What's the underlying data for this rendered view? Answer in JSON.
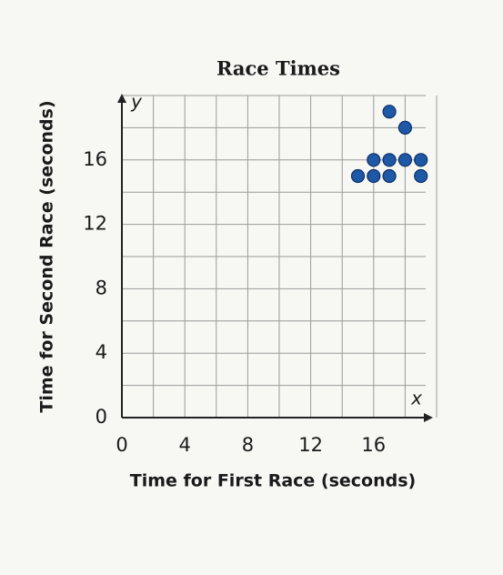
{
  "chart_data": {
    "type": "scatter",
    "title": "Race Times",
    "x_label": "Time for First Race (seconds)",
    "y_label": "Time for Second Race (seconds)",
    "x_axis_letter": "x",
    "y_axis_letter": "y",
    "x": [
      15,
      16,
      17,
      19,
      16,
      17,
      18,
      19,
      18,
      17
    ],
    "series": [
      {
        "name": "Race Times",
        "color": "#1f58a6",
        "values": [
          15,
          15,
          15,
          15,
          16,
          16,
          16,
          16,
          18,
          19
        ]
      }
    ],
    "xlim": [
      0,
      20
    ],
    "ylim": [
      0,
      20
    ],
    "xticks": [
      0,
      4,
      8,
      12,
      16
    ],
    "yticks": [
      0,
      4,
      8,
      12,
      16
    ],
    "xgrid": [
      2,
      4,
      6,
      8,
      10,
      12,
      14,
      16,
      18,
      20
    ],
    "ygrid": [
      2,
      4,
      6,
      8,
      10,
      12,
      14,
      16,
      18,
      20
    ],
    "grid": true
  }
}
